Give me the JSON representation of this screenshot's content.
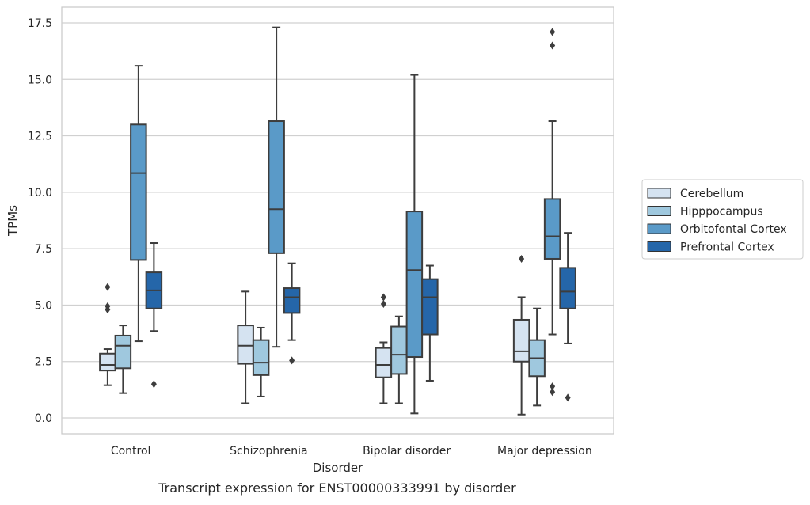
{
  "chart_data": {
    "type": "boxplot",
    "caption": "Transcript expression for ENST00000333991 by disorder",
    "xlabel": "Disorder",
    "ylabel": "TPMs",
    "ylim": [
      -0.7,
      18.2
    ],
    "yticks": [
      "0.0",
      "2.5",
      "5.0",
      "7.5",
      "10.0",
      "12.5",
      "15.0",
      "17.5"
    ],
    "ytick_values": [
      0,
      2.5,
      5,
      7.5,
      10,
      12.5,
      15,
      17.5
    ],
    "grid": "horizontal",
    "legend_position": "right",
    "categories": [
      "Control",
      "Schizophrenia",
      "Bipolar disorder",
      "Major depression"
    ],
    "series": [
      {
        "name": "Cerebellum",
        "color": "#d5e3f1",
        "boxes": [
          {
            "whislo": 1.45,
            "q1": 2.1,
            "med": 2.35,
            "q3": 2.85,
            "whishi": 3.05,
            "fliers": [
              5.8,
              4.95,
              4.8
            ]
          },
          {
            "whislo": 0.65,
            "q1": 2.4,
            "med": 3.2,
            "q3": 4.1,
            "whishi": 5.6,
            "fliers": []
          },
          {
            "whislo": 0.65,
            "q1": 1.8,
            "med": 2.35,
            "q3": 3.1,
            "whishi": 3.35,
            "fliers": [
              5.35,
              5.05
            ]
          },
          {
            "whislo": 0.15,
            "q1": 2.5,
            "med": 2.95,
            "q3": 4.35,
            "whishi": 5.35,
            "fliers": [
              7.05
            ]
          }
        ]
      },
      {
        "name": "Hipppocampus",
        "color": "#9fc8de",
        "boxes": [
          {
            "whislo": 1.1,
            "q1": 2.2,
            "med": 3.2,
            "q3": 3.65,
            "whishi": 4.1,
            "fliers": []
          },
          {
            "whislo": 0.95,
            "q1": 1.9,
            "med": 2.45,
            "q3": 3.45,
            "whishi": 4.0,
            "fliers": []
          },
          {
            "whislo": 0.65,
            "q1": 1.95,
            "med": 2.8,
            "q3": 4.05,
            "whishi": 4.5,
            "fliers": []
          },
          {
            "whislo": 0.55,
            "q1": 1.85,
            "med": 2.65,
            "q3": 3.45,
            "whishi": 4.85,
            "fliers": []
          }
        ]
      },
      {
        "name": "Orbitofontal Cortex",
        "color": "#5a9ac8",
        "boxes": [
          {
            "whislo": 3.4,
            "q1": 7.0,
            "med": 10.85,
            "q3": 13.0,
            "whishi": 15.6,
            "fliers": []
          },
          {
            "whislo": 3.15,
            "q1": 7.3,
            "med": 9.25,
            "q3": 13.15,
            "whishi": 17.3,
            "fliers": []
          },
          {
            "whislo": 0.2,
            "q1": 2.7,
            "med": 6.55,
            "q3": 9.15,
            "whishi": 15.2,
            "fliers": []
          },
          {
            "whislo": 3.7,
            "q1": 7.05,
            "med": 8.05,
            "q3": 9.7,
            "whishi": 13.15,
            "fliers": [
              17.1,
              16.5,
              1.4,
              1.15
            ]
          }
        ]
      },
      {
        "name": "Prefrontal Cortex",
        "color": "#2566a9",
        "boxes": [
          {
            "whislo": 3.85,
            "q1": 4.85,
            "med": 5.65,
            "q3": 6.45,
            "whishi": 7.75,
            "fliers": [
              1.5
            ]
          },
          {
            "whislo": 3.45,
            "q1": 4.65,
            "med": 5.35,
            "q3": 5.75,
            "whishi": 6.85,
            "fliers": [
              2.55
            ]
          },
          {
            "whislo": 1.65,
            "q1": 3.7,
            "med": 5.35,
            "q3": 6.15,
            "whishi": 6.75,
            "fliers": []
          },
          {
            "whislo": 3.3,
            "q1": 4.85,
            "med": 5.6,
            "q3": 6.65,
            "whishi": 8.2,
            "fliers": [
              0.9
            ]
          }
        ]
      }
    ]
  }
}
